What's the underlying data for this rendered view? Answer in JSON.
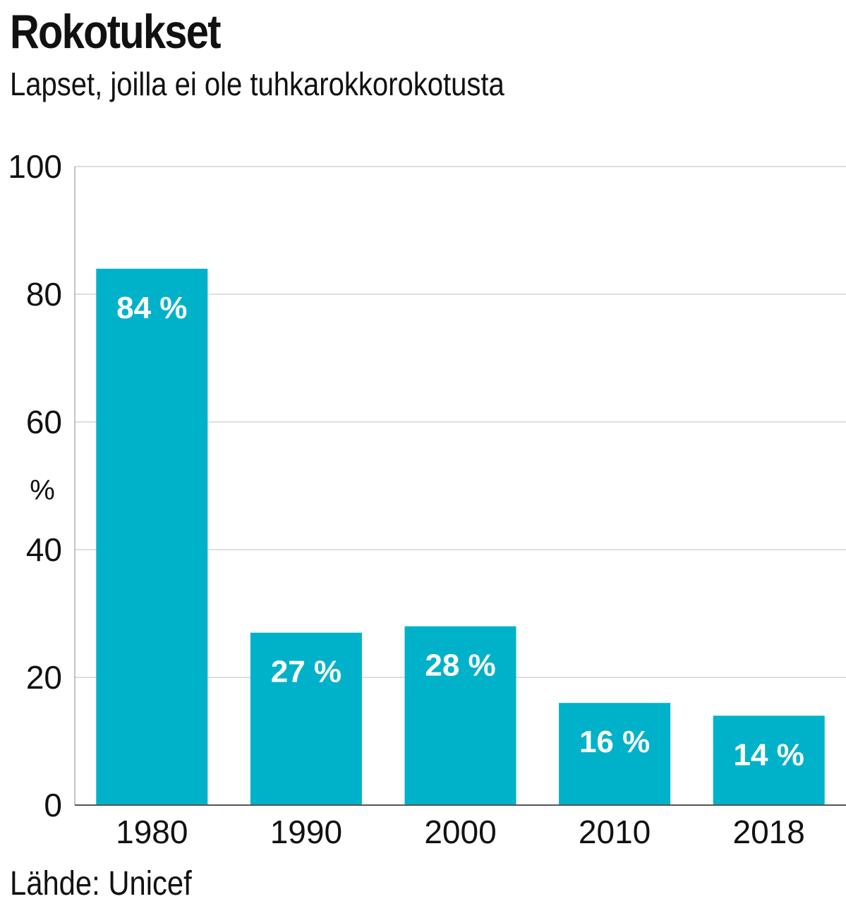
{
  "chart_data": {
    "type": "bar",
    "title": "Rokotukset",
    "subtitle": "Lapset, joilla ei ole tuhkarokkorokotusta",
    "categories": [
      "1980",
      "1990",
      "2000",
      "2010",
      "2018"
    ],
    "values": [
      84,
      27,
      28,
      16,
      14
    ],
    "data_labels": [
      "84 %",
      "27 %",
      "28 %",
      "16 %",
      "14 %"
    ],
    "xlabel": "",
    "ylabel": "%",
    "ylim": [
      0,
      100
    ],
    "yticks": [
      0,
      20,
      40,
      60,
      80,
      100
    ],
    "grid": true,
    "bar_color": "#00b2c9",
    "source": "Lähde: Unicef"
  }
}
